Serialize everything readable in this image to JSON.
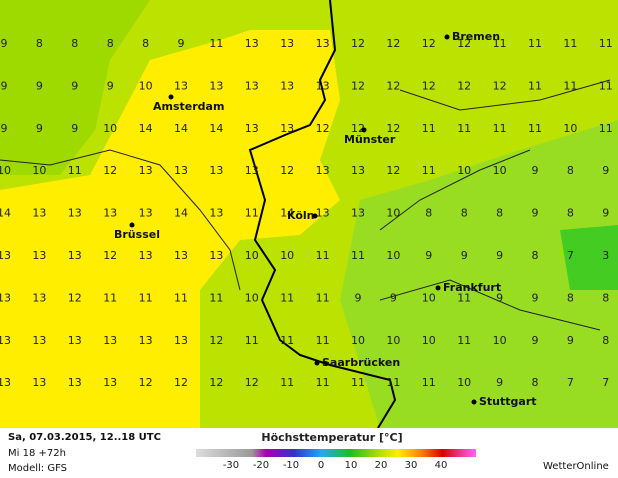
{
  "map": {
    "grid": [
      [
        9,
        8,
        8,
        8,
        8,
        9,
        11,
        13,
        13,
        13,
        12,
        12,
        12,
        12,
        11,
        11,
        11,
        11
      ],
      [
        9,
        9,
        9,
        9,
        10,
        13,
        13,
        13,
        13,
        13,
        12,
        12,
        12,
        12,
        12,
        11,
        11,
        11
      ],
      [
        9,
        9,
        9,
        10,
        14,
        14,
        14,
        13,
        13,
        12,
        12,
        12,
        11,
        11,
        11,
        11,
        10,
        11
      ],
      [
        10,
        10,
        11,
        12,
        13,
        13,
        13,
        13,
        12,
        13,
        13,
        12,
        11,
        10,
        10,
        9,
        8,
        9
      ],
      [
        14,
        13,
        13,
        13,
        13,
        14,
        13,
        11,
        14,
        13,
        13,
        10,
        8,
        8,
        8,
        9,
        8,
        9
      ],
      [
        13,
        13,
        13,
        12,
        13,
        13,
        13,
        10,
        10,
        11,
        11,
        10,
        9,
        9,
        9,
        8,
        7,
        3
      ],
      [
        13,
        13,
        12,
        11,
        11,
        11,
        11,
        10,
        11,
        11,
        9,
        9,
        10,
        11,
        9,
        9,
        8,
        8
      ],
      [
        13,
        13,
        13,
        13,
        13,
        13,
        12,
        11,
        11,
        11,
        10,
        10,
        10,
        11,
        10,
        9,
        9,
        8
      ],
      [
        13,
        13,
        13,
        13,
        12,
        12,
        12,
        12,
        11,
        11,
        11,
        11,
        11,
        10,
        9,
        8,
        7,
        7
      ]
    ],
    "cities": [
      "Bremen",
      "Amsterdam",
      "Münster",
      "Brüssel",
      "Köln",
      "Frankfurt",
      "Saarbrücken",
      "Stuttgart"
    ]
  },
  "footer": {
    "date": "Sa, 07.03.2015, 12..18 UTC",
    "run": "Mi 18 +72h",
    "model": "Modell: GFS",
    "title": "Höchsttemperatur [°C]",
    "brand": "WetterOnline"
  },
  "legend": {
    "ticks": [
      -30,
      -20,
      -10,
      0,
      10,
      20,
      30,
      40
    ]
  }
}
